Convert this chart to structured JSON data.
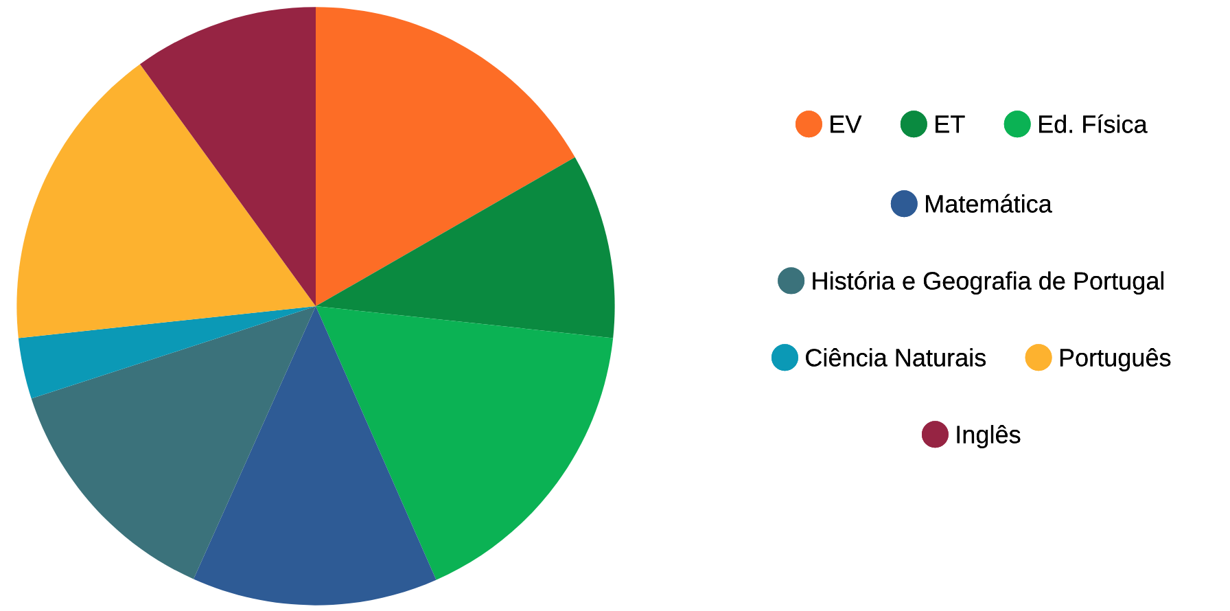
{
  "chart_data": {
    "type": "pie",
    "categories": [
      "EV",
      "ET",
      "Ed. Física",
      "Matemática",
      "História e Geografia de Portugal",
      "Ciência Naturais",
      "Português",
      "Inglês"
    ],
    "values": [
      16.7,
      10,
      16.7,
      13.3,
      13.3,
      3.3,
      16.7,
      10
    ],
    "colors": [
      "#fd6d26",
      "#0a8a40",
      "#0bb254",
      "#2e5b95",
      "#3b727b",
      "#0b99b6",
      "#fdb22f",
      "#962443"
    ],
    "legend": "right"
  }
}
